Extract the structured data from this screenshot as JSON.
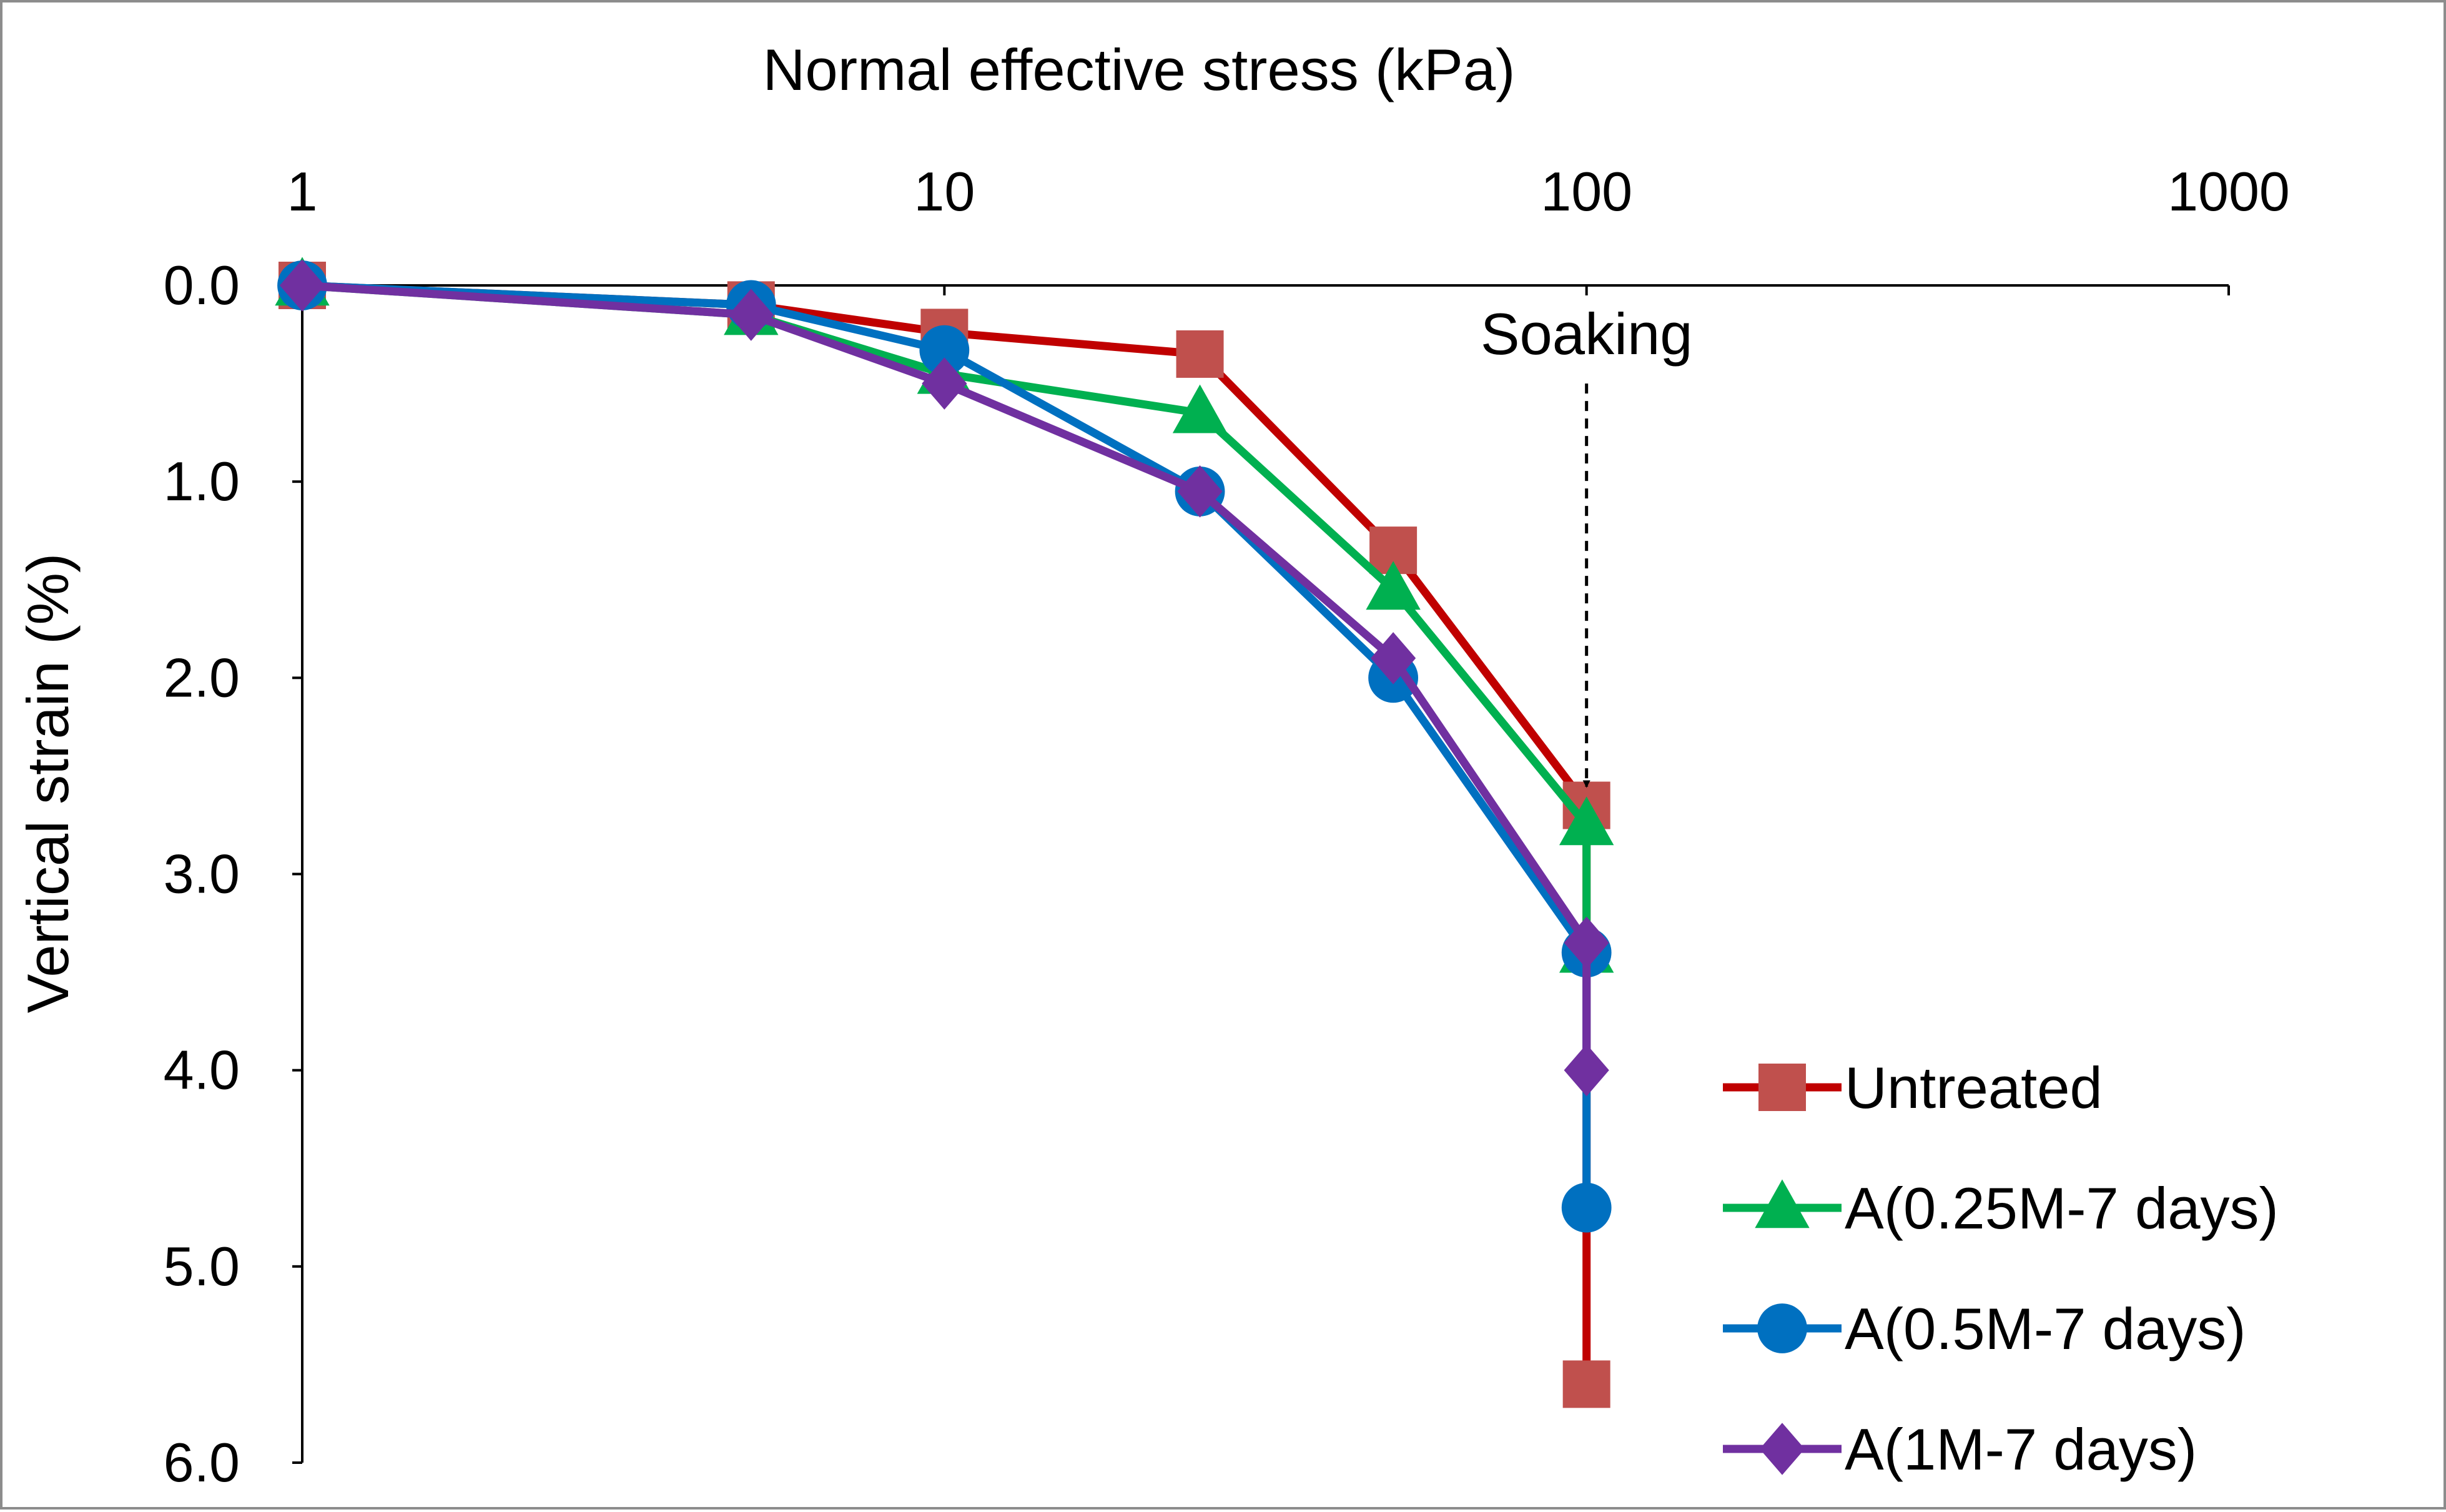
{
  "chart_data": {
    "type": "line",
    "title": "",
    "xlabel": "Normal effective stress  (kPa)",
    "ylabel": "Vertical strain (%)",
    "x_scale": "log",
    "x_axis_position": "top",
    "y_inverted": true,
    "xlim": [
      1,
      1000
    ],
    "ylim": [
      0,
      6
    ],
    "x_ticks": [
      1,
      10,
      100,
      1000
    ],
    "x_tick_labels": [
      "1",
      "10",
      "100",
      "1000"
    ],
    "y_ticks": [
      0,
      1,
      2,
      3,
      4,
      5,
      6
    ],
    "y_tick_labels": [
      "0.0",
      "1.0",
      "2.0",
      "3.0",
      "4.0",
      "5.0",
      "6.0"
    ],
    "grid": false,
    "legend_position": "bottom-right",
    "series": [
      {
        "name": "Untreated",
        "color": "#C00000",
        "marker_color": "#C0504D",
        "marker": "square",
        "points": [
          {
            "x": 1,
            "y": 0.0
          },
          {
            "x": 5,
            "y": 0.1
          },
          {
            "x": 10,
            "y": 0.24
          },
          {
            "x": 25,
            "y": 0.35
          },
          {
            "x": 50,
            "y": 1.35
          },
          {
            "x": 100,
            "y": 2.65
          },
          {
            "x": 100,
            "y": 5.6
          }
        ]
      },
      {
        "name": "A(0.25M-7 days)",
        "color": "#00B050",
        "marker_color": "#00B050",
        "marker": "triangle",
        "points": [
          {
            "x": 1,
            "y": 0.0
          },
          {
            "x": 5,
            "y": 0.15
          },
          {
            "x": 10,
            "y": 0.45
          },
          {
            "x": 25,
            "y": 0.65
          },
          {
            "x": 50,
            "y": 1.55
          },
          {
            "x": 100,
            "y": 2.75
          },
          {
            "x": 100,
            "y": 3.4
          }
        ]
      },
      {
        "name": "A(0.5M-7 days)",
        "color": "#0070C0",
        "marker_color": "#0070C0",
        "marker": "circle",
        "points": [
          {
            "x": 1,
            "y": 0.0
          },
          {
            "x": 5,
            "y": 0.1
          },
          {
            "x": 10,
            "y": 0.33
          },
          {
            "x": 25,
            "y": 1.05
          },
          {
            "x": 50,
            "y": 2.0
          },
          {
            "x": 100,
            "y": 3.4
          },
          {
            "x": 100,
            "y": 4.7
          }
        ]
      },
      {
        "name": "A(1M-7 days)",
        "color": "#7030A0",
        "marker_color": "#7030A0",
        "marker": "diamond",
        "points": [
          {
            "x": 1,
            "y": 0.0
          },
          {
            "x": 5,
            "y": 0.15
          },
          {
            "x": 10,
            "y": 0.5
          },
          {
            "x": 25,
            "y": 1.05
          },
          {
            "x": 50,
            "y": 1.9
          },
          {
            "x": 100,
            "y": 3.35
          },
          {
            "x": 100,
            "y": 4.0
          }
        ]
      }
    ],
    "annotations": [
      {
        "text": "Soaking",
        "x": 100,
        "arrow": "dashed",
        "arrow_from_y": 0.5,
        "arrow_to_y": 2.65
      }
    ]
  }
}
